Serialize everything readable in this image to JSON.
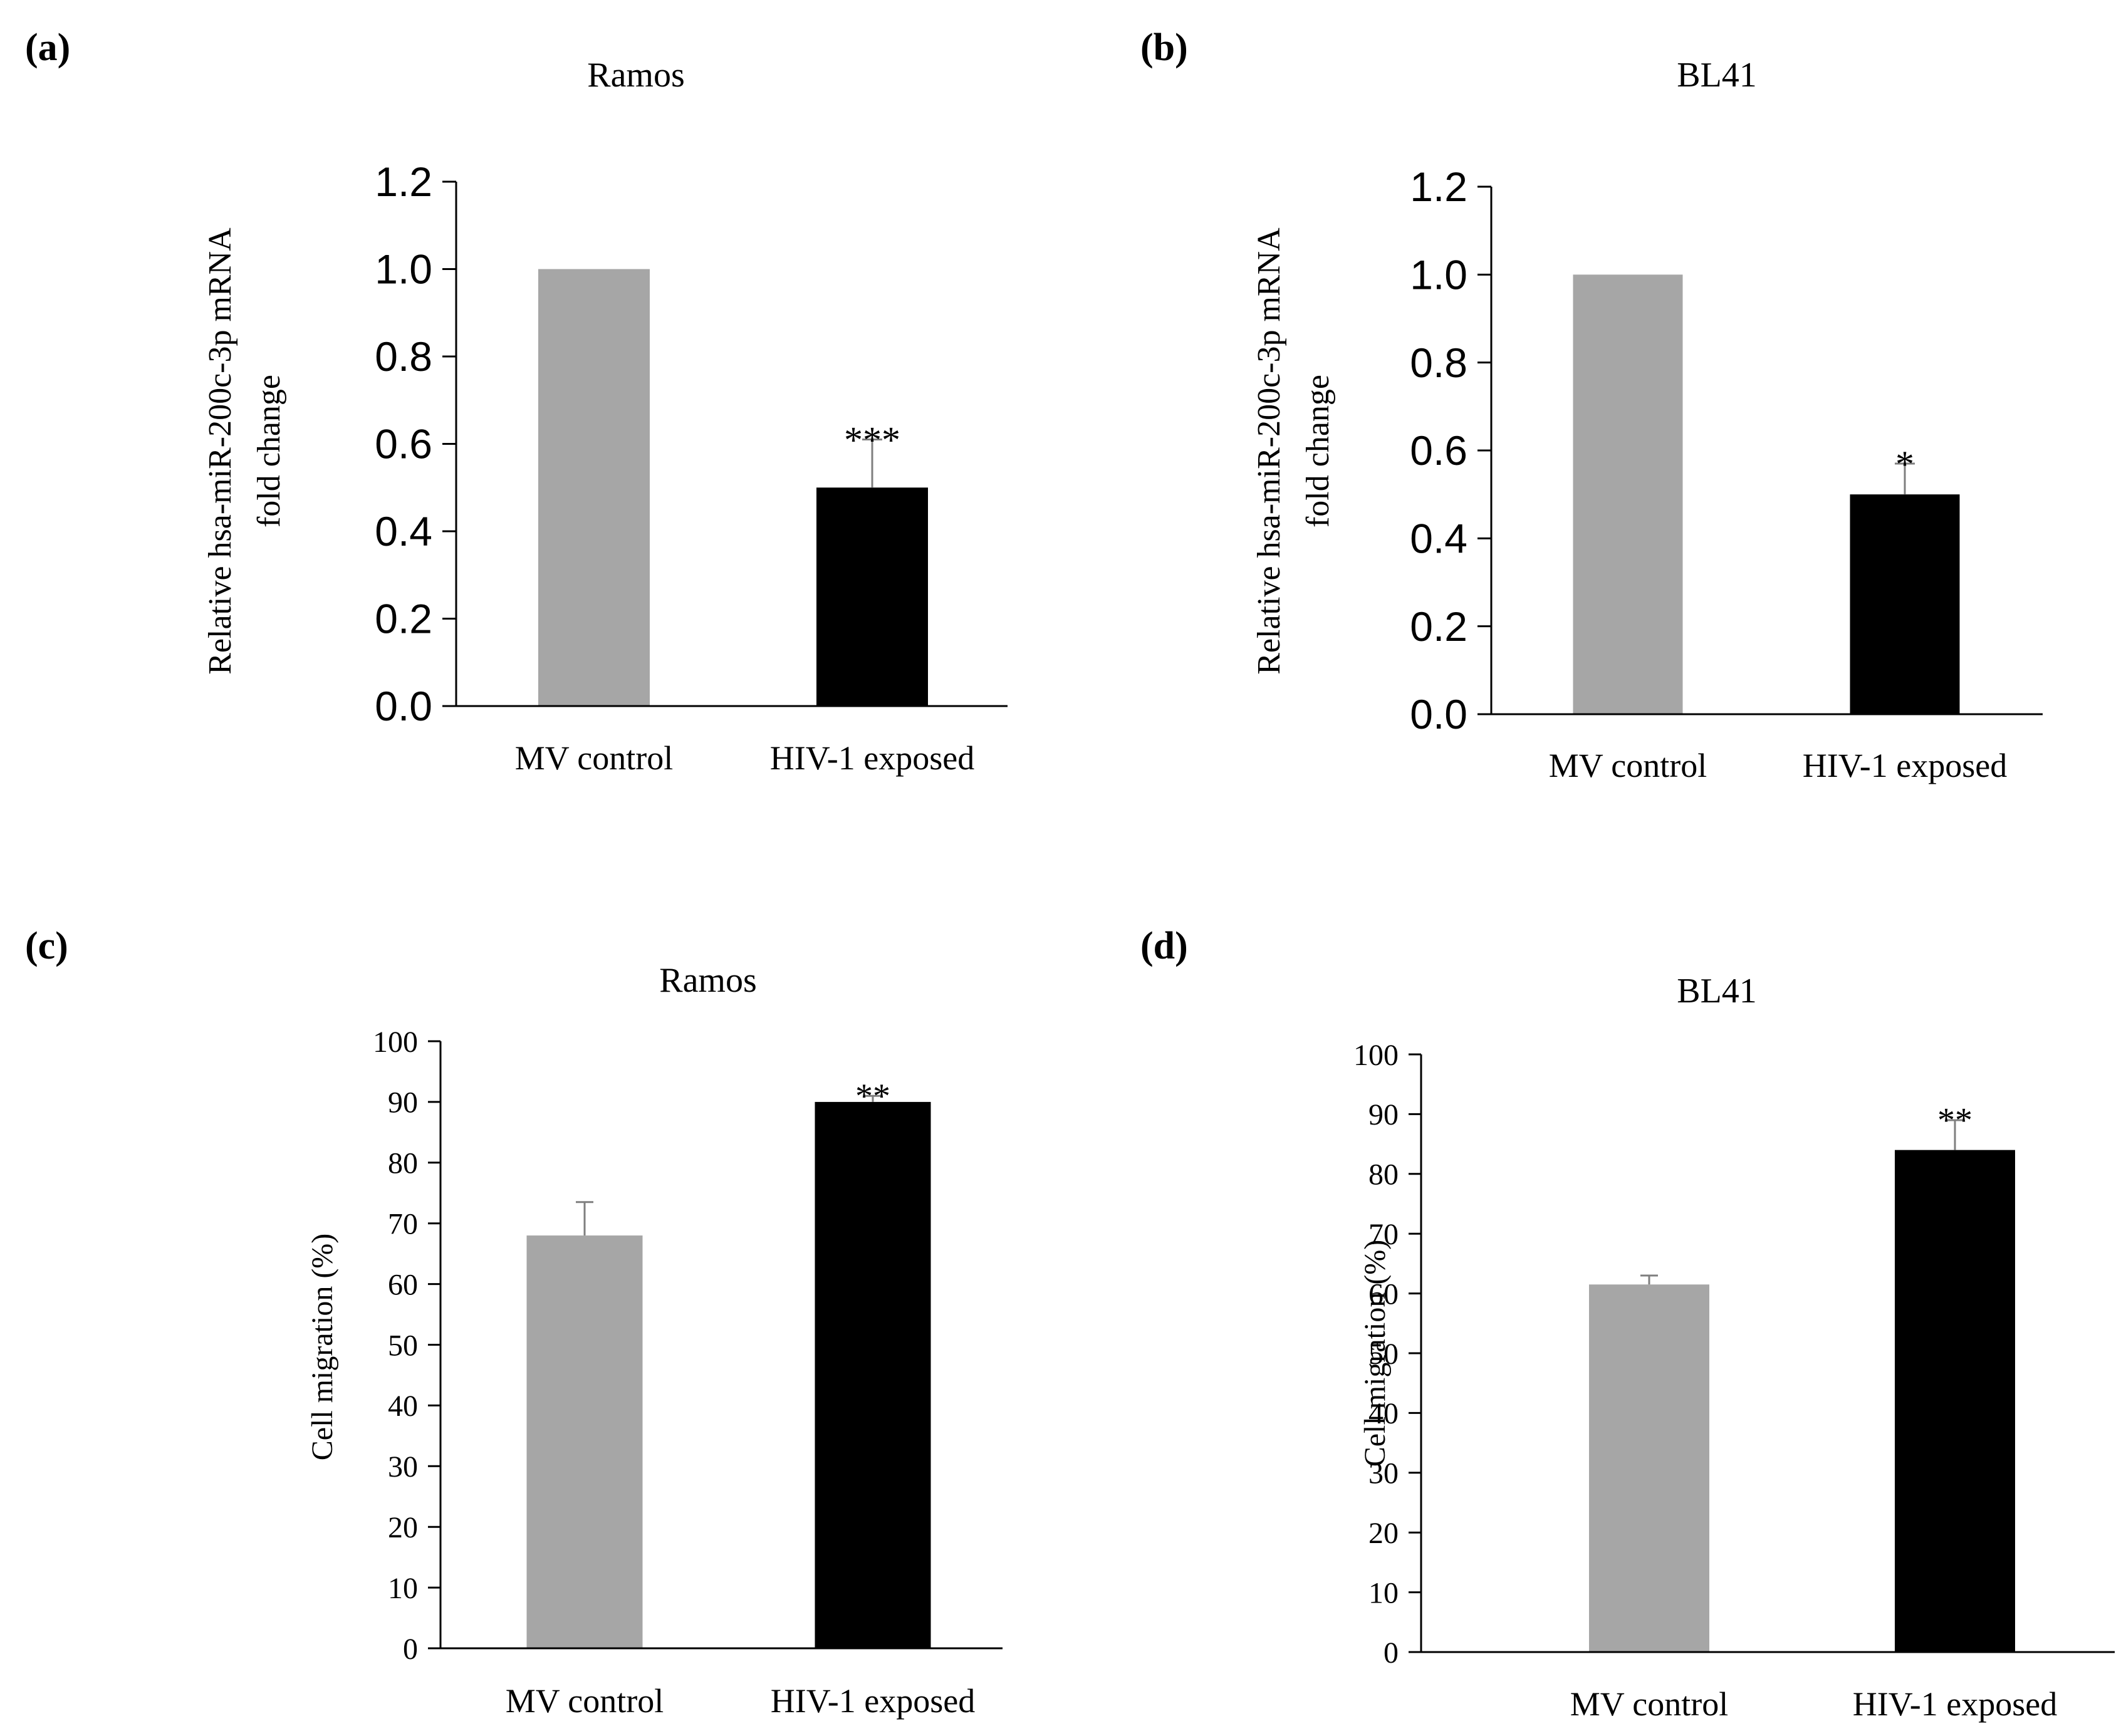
{
  "chart_data": [
    {
      "panel": "(a)",
      "type": "bar",
      "title": "Ramos",
      "ylabel_line1": "Relative hsa-miR-200c-3p mRNA",
      "ylabel_line2": "fold change",
      "xlabel": "",
      "categories": [
        "MV control",
        "HIV-1 exposed"
      ],
      "values": [
        1.0,
        0.5
      ],
      "errors": [
        0.0,
        0.11
      ],
      "significance": [
        "",
        "***"
      ],
      "bar_colors": [
        "#a6a6a6",
        "#000000"
      ],
      "ylim": [
        0,
        1.2
      ],
      "yticks": [
        "0.0",
        "0.2",
        "0.4",
        "0.6",
        "0.8",
        "1.0",
        "1.2"
      ]
    },
    {
      "panel": "(b)",
      "type": "bar",
      "title": "BL41",
      "ylabel_line1": "Relative hsa-miR-200c-3p mRNA",
      "ylabel_line2": "fold change",
      "xlabel": "",
      "categories": [
        "MV control",
        "HIV-1 exposed"
      ],
      "values": [
        1.0,
        0.5
      ],
      "errors": [
        0.0,
        0.07
      ],
      "significance": [
        "",
        "*"
      ],
      "bar_colors": [
        "#a6a6a6",
        "#000000"
      ],
      "ylim": [
        0,
        1.2
      ],
      "yticks": [
        "0.0",
        "0.2",
        "0.4",
        "0.6",
        "0.8",
        "1.0",
        "1.2"
      ]
    },
    {
      "panel": "(c)",
      "type": "bar",
      "title": "Ramos",
      "ylabel_line1": "Cell migration (%)",
      "ylabel_line2": "",
      "xlabel": "",
      "categories": [
        "MV control",
        "HIV-1 exposed"
      ],
      "values": [
        68,
        90
      ],
      "errors": [
        5.5,
        1.0
      ],
      "significance": [
        "",
        "**"
      ],
      "bar_colors": [
        "#a6a6a6",
        "#000000"
      ],
      "ylim": [
        0,
        100
      ],
      "yticks": [
        "0",
        "10",
        "20",
        "30",
        "40",
        "50",
        "60",
        "70",
        "80",
        "90",
        "100"
      ]
    },
    {
      "panel": "(d)",
      "type": "bar",
      "title": "BL41",
      "ylabel_line1": "Cell migration (%)",
      "ylabel_line2": "",
      "xlabel": "",
      "categories": [
        "MV control",
        "HIV-1 exposed"
      ],
      "values": [
        61.5,
        84
      ],
      "errors": [
        1.5,
        5.0
      ],
      "significance": [
        "",
        "**"
      ],
      "bar_colors": [
        "#a6a6a6",
        "#000000"
      ],
      "ylim": [
        0,
        100
      ],
      "yticks": [
        "0",
        "10",
        "20",
        "30",
        "40",
        "50",
        "60",
        "70",
        "80",
        "90",
        "100"
      ]
    }
  ]
}
